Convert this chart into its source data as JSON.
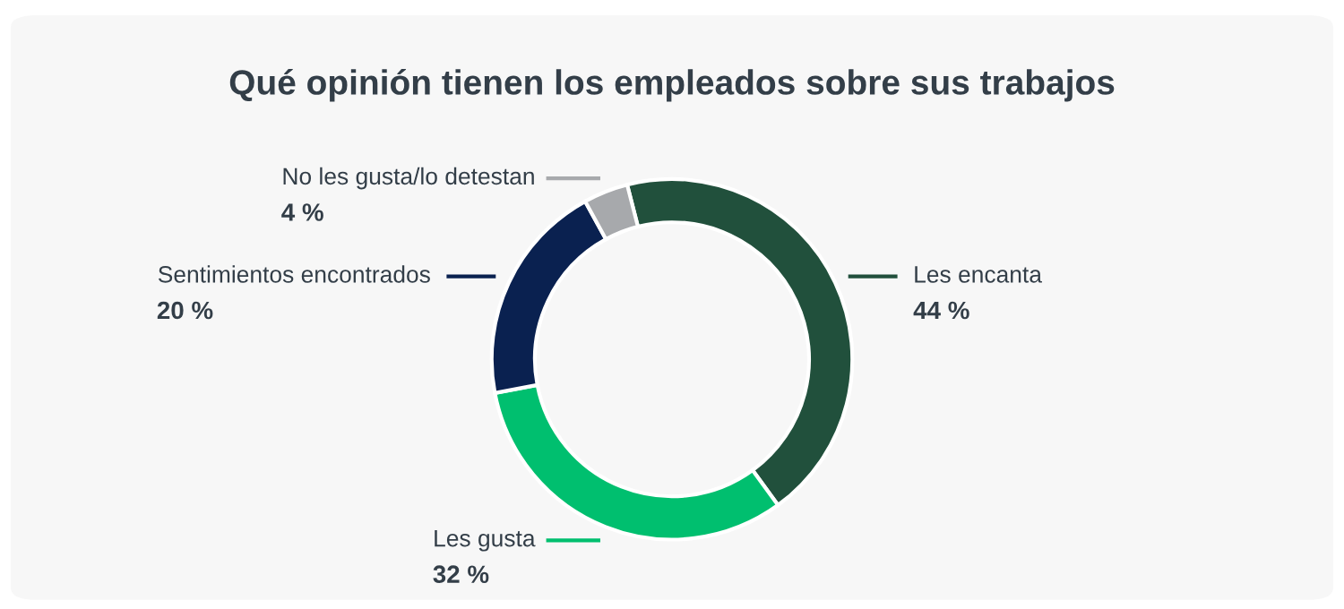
{
  "chart_data": {
    "type": "donut",
    "title": "Qué opinión tienen los empleados sobre sus trabajos",
    "categories": [
      "Les encanta",
      "Les gusta",
      "Sentimientos encontrados",
      "No les gusta/lo detestan"
    ],
    "values": [
      44,
      32,
      20,
      4
    ],
    "value_labels": [
      "44 %",
      "32 %",
      "20 %",
      "4 %"
    ],
    "colors": [
      "#21503c",
      "#00bf6f",
      "#0a2150",
      "#a7a9ac"
    ],
    "legend": false
  }
}
